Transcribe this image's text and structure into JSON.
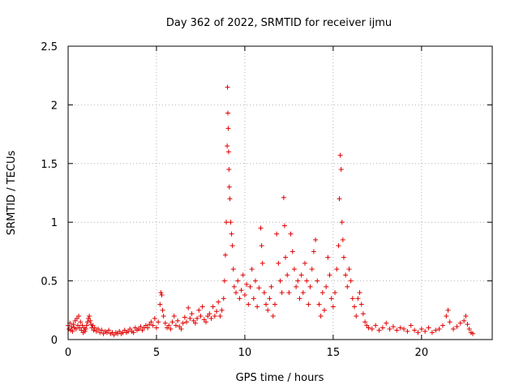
{
  "chart_data": {
    "type": "scatter",
    "title": "Day 362 of 2022, SRMTID for receiver ijmu",
    "xlabel": "GPS time / hours",
    "ylabel": "SRMTID / TECUs",
    "xlim": [
      0,
      24
    ],
    "ylim": [
      0,
      2.5
    ],
    "xticks": [
      0,
      5,
      10,
      15,
      20
    ],
    "yticks": [
      0,
      0.5,
      1,
      1.5,
      2,
      2.5
    ],
    "ytick_labels": [
      "0",
      "0.5",
      "1",
      "1.5",
      "2",
      "2.5"
    ],
    "grid": true,
    "marker": "+",
    "color": "#e00000",
    "series": [
      {
        "name": "SRMTID",
        "points": [
          [
            0.0,
            0.12
          ],
          [
            0.05,
            0.09
          ],
          [
            0.1,
            0.14
          ],
          [
            0.15,
            0.08
          ],
          [
            0.2,
            0.11
          ],
          [
            0.25,
            0.07
          ],
          [
            0.3,
            0.13
          ],
          [
            0.35,
            0.1
          ],
          [
            0.4,
            0.16
          ],
          [
            0.45,
            0.09
          ],
          [
            0.5,
            0.18
          ],
          [
            0.55,
            0.12
          ],
          [
            0.6,
            0.2
          ],
          [
            0.65,
            0.1
          ],
          [
            0.7,
            0.15
          ],
          [
            0.75,
            0.08
          ],
          [
            0.8,
            0.12
          ],
          [
            0.85,
            0.06
          ],
          [
            0.9,
            0.1
          ],
          [
            0.95,
            0.07
          ],
          [
            1.0,
            0.09
          ],
          [
            1.05,
            0.12
          ],
          [
            1.1,
            0.15
          ],
          [
            1.15,
            0.18
          ],
          [
            1.2,
            0.2
          ],
          [
            1.25,
            0.16
          ],
          [
            1.3,
            0.13
          ],
          [
            1.35,
            0.1
          ],
          [
            1.4,
            0.12
          ],
          [
            1.45,
            0.08
          ],
          [
            1.5,
            0.1
          ],
          [
            1.6,
            0.07
          ],
          [
            1.7,
            0.09
          ],
          [
            1.8,
            0.06
          ],
          [
            1.9,
            0.08
          ],
          [
            2.0,
            0.05
          ],
          [
            2.1,
            0.07
          ],
          [
            2.2,
            0.06
          ],
          [
            2.3,
            0.08
          ],
          [
            2.4,
            0.05
          ],
          [
            2.5,
            0.06
          ],
          [
            2.6,
            0.04
          ],
          [
            2.7,
            0.06
          ],
          [
            2.8,
            0.05
          ],
          [
            2.9,
            0.07
          ],
          [
            3.0,
            0.05
          ],
          [
            3.1,
            0.06
          ],
          [
            3.2,
            0.08
          ],
          [
            3.3,
            0.06
          ],
          [
            3.4,
            0.07
          ],
          [
            3.5,
            0.09
          ],
          [
            3.6,
            0.07
          ],
          [
            3.7,
            0.06
          ],
          [
            3.8,
            0.1
          ],
          [
            3.9,
            0.08
          ],
          [
            4.0,
            0.09
          ],
          [
            4.1,
            0.11
          ],
          [
            4.2,
            0.08
          ],
          [
            4.3,
            0.1
          ],
          [
            4.4,
            0.12
          ],
          [
            4.5,
            0.1
          ],
          [
            4.6,
            0.13
          ],
          [
            4.7,
            0.15
          ],
          [
            4.8,
            0.12
          ],
          [
            4.9,
            0.18
          ],
          [
            5.0,
            0.1
          ],
          [
            5.1,
            0.15
          ],
          [
            5.2,
            0.3
          ],
          [
            5.25,
            0.4
          ],
          [
            5.3,
            0.38
          ],
          [
            5.35,
            0.25
          ],
          [
            5.4,
            0.2
          ],
          [
            5.5,
            0.14
          ],
          [
            5.6,
            0.1
          ],
          [
            5.7,
            0.12
          ],
          [
            5.8,
            0.09
          ],
          [
            5.9,
            0.15
          ],
          [
            6.0,
            0.2
          ],
          [
            6.1,
            0.12
          ],
          [
            6.2,
            0.16
          ],
          [
            6.3,
            0.11
          ],
          [
            6.4,
            0.09
          ],
          [
            6.5,
            0.14
          ],
          [
            6.6,
            0.19
          ],
          [
            6.7,
            0.15
          ],
          [
            6.8,
            0.27
          ],
          [
            6.9,
            0.18
          ],
          [
            7.0,
            0.22
          ],
          [
            7.1,
            0.16
          ],
          [
            7.2,
            0.14
          ],
          [
            7.3,
            0.18
          ],
          [
            7.4,
            0.25
          ],
          [
            7.5,
            0.2
          ],
          [
            7.6,
            0.28
          ],
          [
            7.7,
            0.17
          ],
          [
            7.8,
            0.15
          ],
          [
            7.9,
            0.2
          ],
          [
            8.0,
            0.22
          ],
          [
            8.1,
            0.18
          ],
          [
            8.2,
            0.28
          ],
          [
            8.3,
            0.2
          ],
          [
            8.4,
            0.24
          ],
          [
            8.5,
            0.32
          ],
          [
            8.6,
            0.2
          ],
          [
            8.7,
            0.25
          ],
          [
            8.8,
            0.35
          ],
          [
            8.85,
            0.5
          ],
          [
            8.9,
            0.72
          ],
          [
            8.95,
            1.0
          ],
          [
            9.0,
            1.65
          ],
          [
            9.02,
            2.15
          ],
          [
            9.04,
            1.93
          ],
          [
            9.06,
            1.8
          ],
          [
            9.08,
            1.6
          ],
          [
            9.1,
            1.45
          ],
          [
            9.12,
            1.3
          ],
          [
            9.15,
            1.2
          ],
          [
            9.2,
            1.0
          ],
          [
            9.25,
            0.9
          ],
          [
            9.3,
            0.8
          ],
          [
            9.35,
            0.6
          ],
          [
            9.4,
            0.45
          ],
          [
            9.5,
            0.4
          ],
          [
            9.6,
            0.5
          ],
          [
            9.7,
            0.35
          ],
          [
            9.8,
            0.42
          ],
          [
            9.9,
            0.55
          ],
          [
            10.0,
            0.38
          ],
          [
            10.1,
            0.47
          ],
          [
            10.2,
            0.3
          ],
          [
            10.3,
            0.45
          ],
          [
            10.4,
            0.6
          ],
          [
            10.5,
            0.35
          ],
          [
            10.6,
            0.5
          ],
          [
            10.7,
            0.28
          ],
          [
            10.8,
            0.44
          ],
          [
            10.9,
            0.95
          ],
          [
            10.95,
            0.8
          ],
          [
            11.0,
            0.65
          ],
          [
            11.1,
            0.4
          ],
          [
            11.2,
            0.3
          ],
          [
            11.3,
            0.25
          ],
          [
            11.4,
            0.35
          ],
          [
            11.5,
            0.45
          ],
          [
            11.6,
            0.2
          ],
          [
            11.7,
            0.3
          ],
          [
            11.8,
            0.9
          ],
          [
            11.9,
            0.65
          ],
          [
            12.0,
            0.5
          ],
          [
            12.1,
            0.4
          ],
          [
            12.2,
            1.21
          ],
          [
            12.25,
            0.97
          ],
          [
            12.3,
            0.7
          ],
          [
            12.4,
            0.55
          ],
          [
            12.5,
            0.4
          ],
          [
            12.6,
            0.9
          ],
          [
            12.7,
            0.75
          ],
          [
            12.8,
            0.6
          ],
          [
            12.9,
            0.45
          ],
          [
            13.0,
            0.5
          ],
          [
            13.1,
            0.35
          ],
          [
            13.2,
            0.55
          ],
          [
            13.3,
            0.4
          ],
          [
            13.4,
            0.65
          ],
          [
            13.5,
            0.5
          ],
          [
            13.6,
            0.3
          ],
          [
            13.7,
            0.45
          ],
          [
            13.8,
            0.6
          ],
          [
            13.9,
            0.75
          ],
          [
            14.0,
            0.85
          ],
          [
            14.1,
            0.5
          ],
          [
            14.2,
            0.3
          ],
          [
            14.3,
            0.2
          ],
          [
            14.4,
            0.4
          ],
          [
            14.5,
            0.25
          ],
          [
            14.6,
            0.45
          ],
          [
            14.7,
            0.7
          ],
          [
            14.8,
            0.55
          ],
          [
            14.9,
            0.35
          ],
          [
            15.0,
            0.28
          ],
          [
            15.1,
            0.4
          ],
          [
            15.2,
            0.6
          ],
          [
            15.3,
            0.8
          ],
          [
            15.35,
            1.2
          ],
          [
            15.4,
            1.57
          ],
          [
            15.45,
            1.45
          ],
          [
            15.5,
            1.0
          ],
          [
            15.55,
            0.85
          ],
          [
            15.6,
            0.7
          ],
          [
            15.7,
            0.55
          ],
          [
            15.8,
            0.45
          ],
          [
            15.9,
            0.6
          ],
          [
            16.0,
            0.5
          ],
          [
            16.1,
            0.35
          ],
          [
            16.2,
            0.28
          ],
          [
            16.3,
            0.2
          ],
          [
            16.4,
            0.35
          ],
          [
            16.5,
            0.4
          ],
          [
            16.6,
            0.3
          ],
          [
            16.7,
            0.22
          ],
          [
            16.8,
            0.15
          ],
          [
            16.9,
            0.12
          ],
          [
            17.0,
            0.1
          ],
          [
            17.2,
            0.09
          ],
          [
            17.4,
            0.12
          ],
          [
            17.6,
            0.08
          ],
          [
            17.8,
            0.1
          ],
          [
            18.0,
            0.14
          ],
          [
            18.2,
            0.09
          ],
          [
            18.4,
            0.11
          ],
          [
            18.6,
            0.08
          ],
          [
            18.8,
            0.1
          ],
          [
            19.0,
            0.09
          ],
          [
            19.2,
            0.07
          ],
          [
            19.4,
            0.12
          ],
          [
            19.6,
            0.08
          ],
          [
            19.8,
            0.06
          ],
          [
            20.0,
            0.09
          ],
          [
            20.2,
            0.07
          ],
          [
            20.4,
            0.1
          ],
          [
            20.6,
            0.06
          ],
          [
            20.8,
            0.08
          ],
          [
            21.0,
            0.09
          ],
          [
            21.2,
            0.12
          ],
          [
            21.4,
            0.2
          ],
          [
            21.5,
            0.25
          ],
          [
            21.6,
            0.15
          ],
          [
            21.8,
            0.09
          ],
          [
            22.0,
            0.11
          ],
          [
            22.2,
            0.14
          ],
          [
            22.4,
            0.16
          ],
          [
            22.5,
            0.2
          ],
          [
            22.6,
            0.13
          ],
          [
            22.7,
            0.09
          ],
          [
            22.8,
            0.06
          ],
          [
            22.9,
            0.05
          ]
        ]
      }
    ]
  }
}
